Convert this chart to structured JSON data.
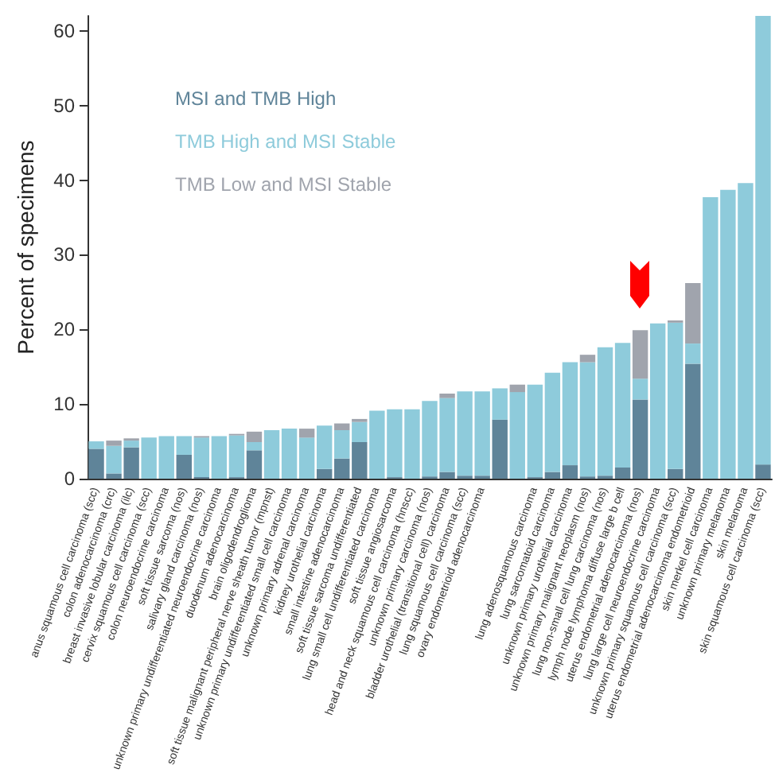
{
  "chart_data": {
    "type": "bar",
    "stacked": true,
    "ylabel": "Percent of specimens",
    "categories": [
      "anus squamous cell carcinoma (scc)",
      "colon adenocarcinoma (crc)",
      "breast invasive lobular carcinoma (ilc)",
      "cervix squamous cell carcinoma (scc)",
      "colon neuroendocrine carcinoma",
      "soft tissue sarcoma (nos)",
      "salivary gland carcinoma (nos)",
      "unknown primary undifferentiated neuroendocrine carcinoma",
      "duodenum adenocarcinoma",
      "brain oligodendroglioma",
      "soft tissue malignant peripheral nerve sheath tumor (mpnst)",
      "unknown primary undifferentiated small cell carcinoma",
      "unknown primary adrenal carcinoma",
      "kidney urothelial carcinoma",
      "small intestine adenocarcinoma",
      "soft tissue sarcoma undifferentiated",
      "lung small cell undifferentiated carcinoma",
      "soft tissue angiosarcoma",
      "head and neck squamous cell carcinoma (hnscc)",
      "unknown primary carcinoma (nos)",
      "bladder urothelial (transitional cell) carcinoma",
      "lung squamous cell carcinoma (scc)",
      "ovary endometrioid adenocarcinoma",
      null,
      null,
      "lung adenosquamous carcinoma",
      "lung sarcomatoid carcinoma",
      "unknown primary urothelial carcinoma",
      "unknown primary malignant neoplasm (nos)",
      "lung non-small cell lung carcinoma (nos)",
      "lymph node lymphoma diffuse large b cell",
      "uterus endometrial adenocarcinoma (nos)",
      "lung large cell neuroendocrine carcinoma",
      "unknown primary squamous cell carcinoma (scc)",
      "uterus endometrial adenocarcinoma endometrioid",
      "skin merkel cell carcinoma",
      "unknown primary melanoma",
      "skin melanoma",
      "skin squamous cell carcinoma (scc)"
    ],
    "series": [
      {
        "name": "MSI and TMB High",
        "color": "#5f8499",
        "values": [
          4.0,
          0.7,
          4.2,
          0,
          0,
          3.2,
          0.2,
          0,
          0.2,
          3.8,
          0,
          0,
          0,
          1.3,
          2.7,
          4.9,
          0,
          0.2,
          0,
          0.3,
          0.9,
          0.4,
          0.4,
          7.9,
          0,
          0.2,
          0.9,
          1.8,
          0.3,
          0.4,
          1.5,
          10.6,
          0,
          1.3,
          15.4,
          0,
          0,
          0,
          1.9
        ]
      },
      {
        "name": "TMB High and MSI Stable",
        "color": "#8ecbdb",
        "values": [
          1.0,
          3.7,
          0.9,
          5.5,
          5.7,
          2.5,
          5.3,
          5.7,
          5.6,
          1.1,
          6.5,
          6.7,
          5.5,
          5.8,
          3.8,
          2.7,
          9.1,
          9.1,
          9.3,
          10.1,
          9.9,
          11.3,
          11.3,
          4.2,
          11.6,
          12.4,
          13.3,
          13.8,
          15.3,
          17.2,
          16.7,
          2.8,
          20.8,
          19.6,
          2.7,
          37.7,
          38.7,
          39.6,
          60.1
        ]
      },
      {
        "name": "TMB Low and MSI Stable",
        "color": "#a0a4ad",
        "values": [
          0,
          0.7,
          0.3,
          0,
          0,
          0,
          0.2,
          0,
          0.2,
          1.4,
          0,
          0,
          1.2,
          0,
          0.9,
          0.4,
          0,
          0,
          0,
          0,
          0.6,
          0,
          0,
          0,
          1.0,
          0,
          0,
          0,
          1.0,
          0,
          0,
          6.5,
          0,
          0.3,
          8.1,
          0,
          0,
          0,
          0
        ]
      }
    ],
    "ylim": [
      0,
      62
    ],
    "yticks": [
      0,
      10,
      20,
      30,
      40,
      50,
      60
    ],
    "grid": false,
    "legend": "top left"
  }
}
